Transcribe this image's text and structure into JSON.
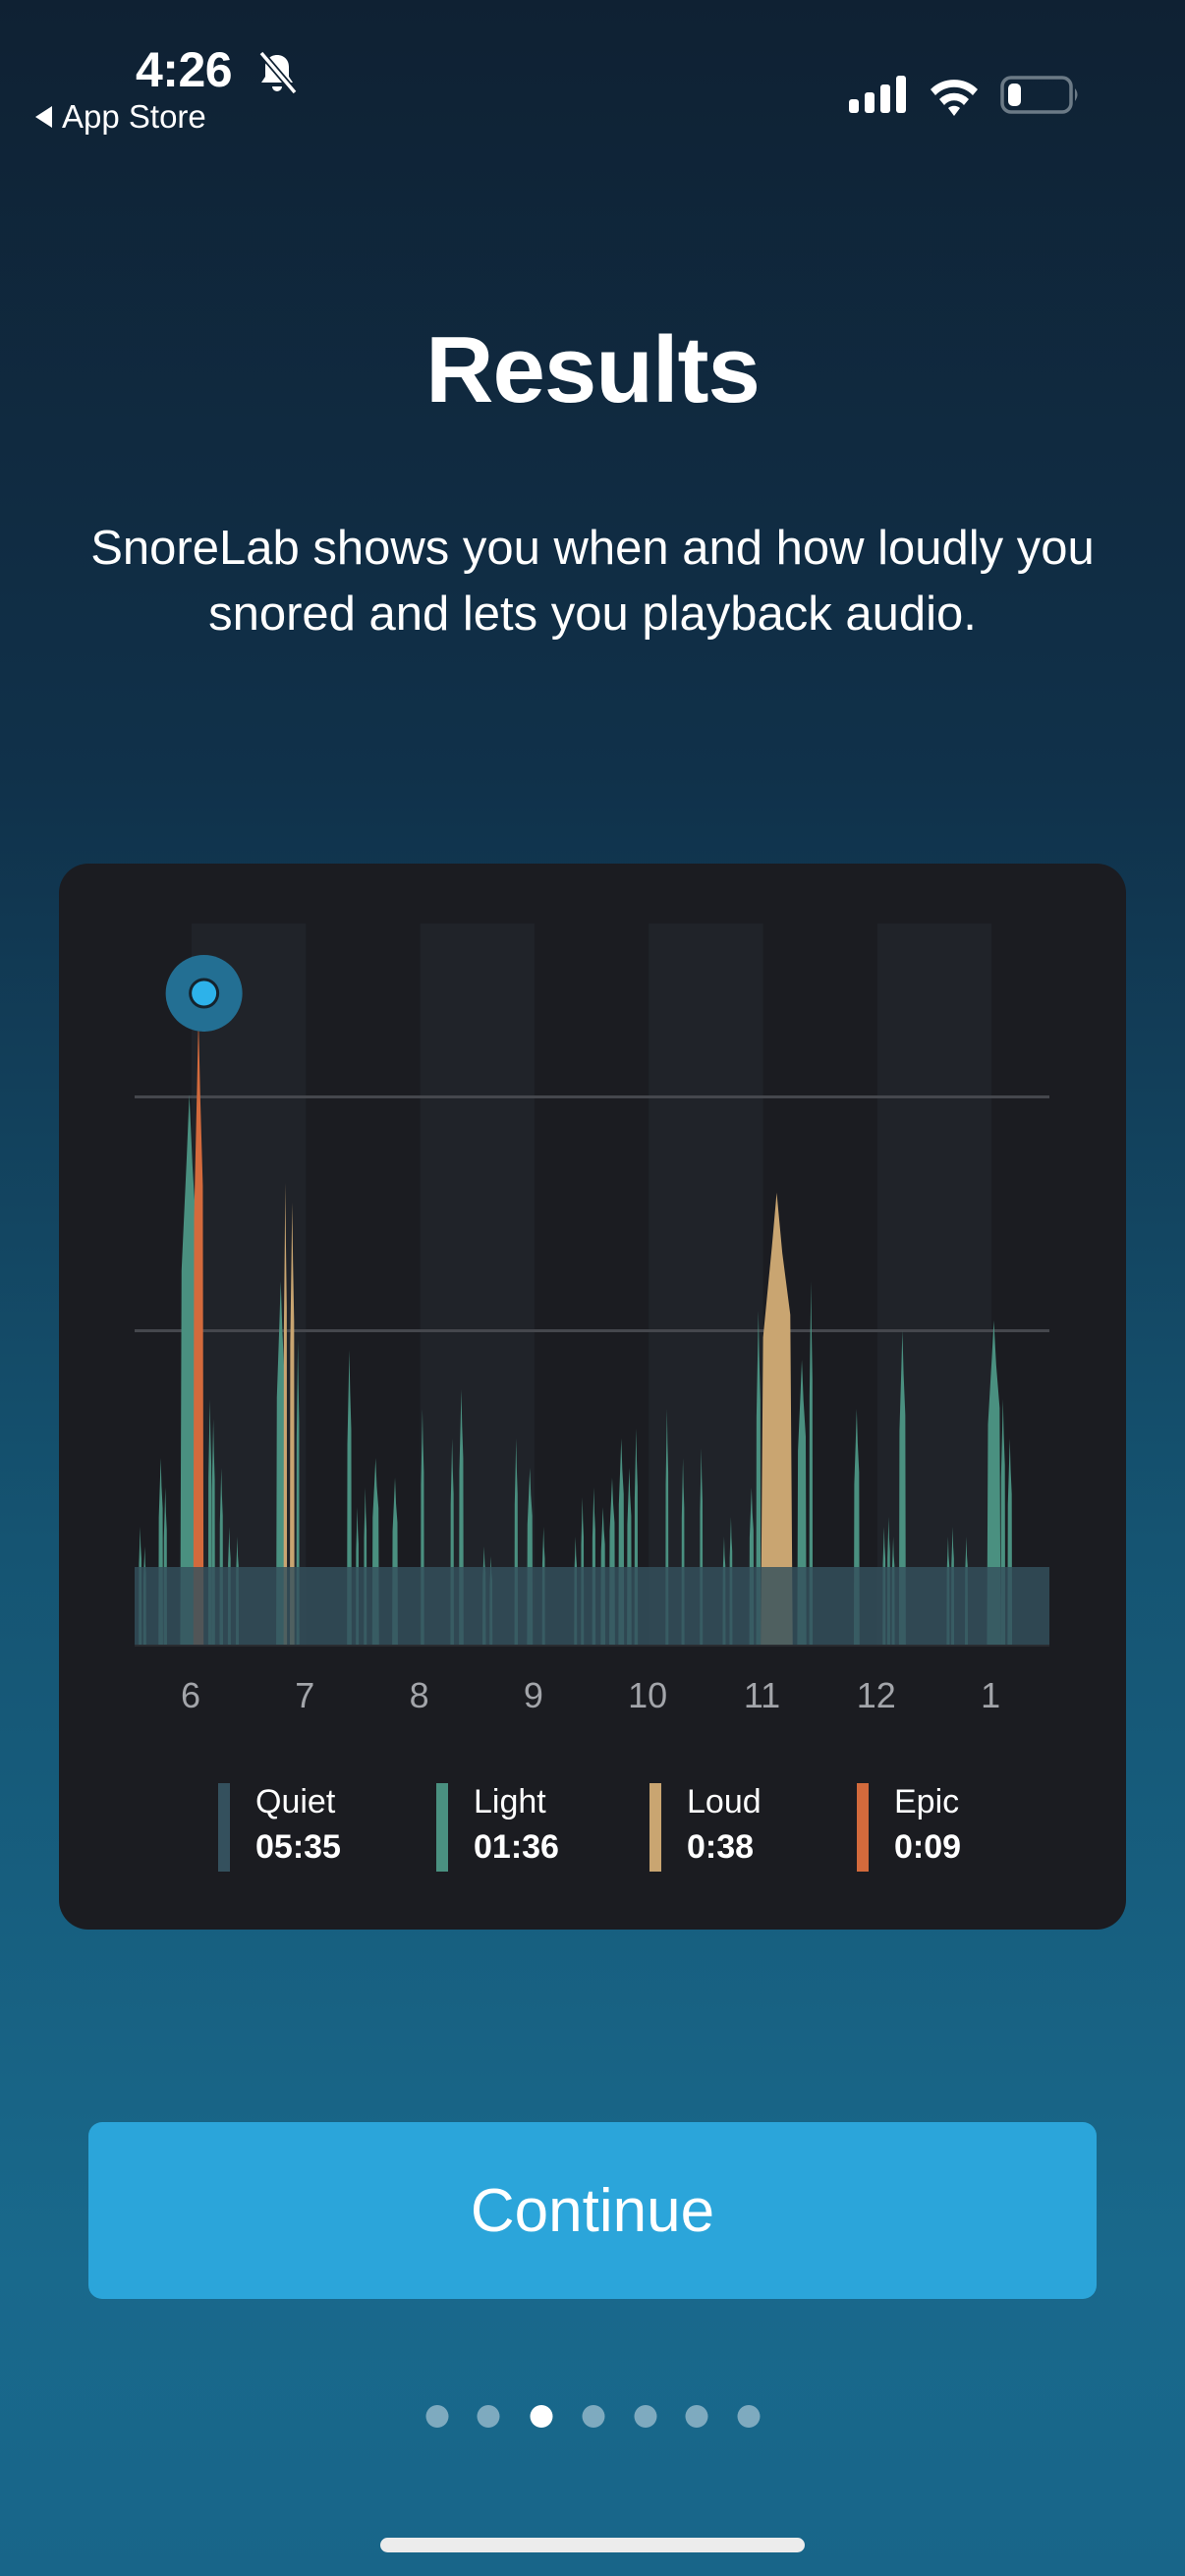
{
  "status_bar": {
    "time": "4:26",
    "silent_icon": "bell-slash-icon",
    "back_label": "App Store",
    "back_icon": "back-triangle-icon",
    "signal_icon": "cellular-signal-icon",
    "wifi_icon": "wifi-icon",
    "battery_icon": "battery-low-icon"
  },
  "page": {
    "title": "Results",
    "subtitle": "SnoreLab shows you when and how loudly you snored and lets you playback audio."
  },
  "colors": {
    "quiet": "#34505d",
    "light": "#4a9080",
    "loud": "#c9a571",
    "epic": "#d36a3c",
    "marker_outer": "#236f93",
    "marker_inner": "#2db2ea",
    "button": "#2ba5da",
    "card_bg": "#1b1c21"
  },
  "chart_data": {
    "type": "area",
    "title": "",
    "xlabel": "",
    "ylabel": "",
    "x_tick_labels": [
      "6",
      "7",
      "8",
      "9",
      "10",
      "11",
      "12",
      "1"
    ],
    "gridlines": 2,
    "legend_position": "bottom",
    "legend": [
      {
        "name": "Quiet",
        "duration": "05:35"
      },
      {
        "name": "Light",
        "duration": "01:36"
      },
      {
        "name": "Loud",
        "duration": "0:38"
      },
      {
        "name": "Epic",
        "duration": "0:09"
      }
    ],
    "selected_marker": {
      "x_hour": 0.1,
      "label": "peak epic snore"
    },
    "quiet_level": 79,
    "grid_levels": [
      319,
      557
    ],
    "spikes": [
      {
        "h": -0.45,
        "w": 0.02,
        "v": 120,
        "c": "light"
      },
      {
        "h": -0.41,
        "w": 0.02,
        "v": 100,
        "c": "light"
      },
      {
        "h": -0.27,
        "w": 0.04,
        "v": 190,
        "c": "light"
      },
      {
        "h": -0.23,
        "w": 0.03,
        "v": 160,
        "c": "light"
      },
      {
        "h": -0.02,
        "w": 0.16,
        "v": 560,
        "c": "light"
      },
      {
        "h": 0.06,
        "w": 0.09,
        "v": 640,
        "c": "epic"
      },
      {
        "h": 0.16,
        "w": 0.03,
        "v": 250,
        "c": "light"
      },
      {
        "h": 0.19,
        "w": 0.03,
        "v": 230,
        "c": "light"
      },
      {
        "h": 0.26,
        "w": 0.03,
        "v": 180,
        "c": "light"
      },
      {
        "h": 0.33,
        "w": 0.02,
        "v": 120,
        "c": "light"
      },
      {
        "h": 0.4,
        "w": 0.02,
        "v": 110,
        "c": "light"
      },
      {
        "h": 0.78,
        "w": 0.08,
        "v": 370,
        "c": "light"
      },
      {
        "h": 0.82,
        "w": 0.03,
        "v": 470,
        "c": "loud"
      },
      {
        "h": 0.88,
        "w": 0.04,
        "v": 450,
        "c": "loud"
      },
      {
        "h": 0.93,
        "w": 0.02,
        "v": 310,
        "c": "light"
      },
      {
        "h": 1.38,
        "w": 0.04,
        "v": 300,
        "c": "light"
      },
      {
        "h": 1.45,
        "w": 0.02,
        "v": 140,
        "c": "light"
      },
      {
        "h": 1.52,
        "w": 0.02,
        "v": 160,
        "c": "light"
      },
      {
        "h": 1.61,
        "w": 0.06,
        "v": 190,
        "c": "light"
      },
      {
        "h": 1.78,
        "w": 0.05,
        "v": 170,
        "c": "light"
      },
      {
        "h": 2.02,
        "w": 0.03,
        "v": 240,
        "c": "light"
      },
      {
        "h": 2.28,
        "w": 0.03,
        "v": 210,
        "c": "light"
      },
      {
        "h": 2.36,
        "w": 0.04,
        "v": 260,
        "c": "light"
      },
      {
        "h": 2.56,
        "w": 0.03,
        "v": 100,
        "c": "light"
      },
      {
        "h": 2.62,
        "w": 0.02,
        "v": 90,
        "c": "light"
      },
      {
        "h": 2.84,
        "w": 0.03,
        "v": 210,
        "c": "light"
      },
      {
        "h": 2.96,
        "w": 0.05,
        "v": 180,
        "c": "light"
      },
      {
        "h": 3.08,
        "w": 0.02,
        "v": 120,
        "c": "light"
      },
      {
        "h": 3.36,
        "w": 0.02,
        "v": 110,
        "c": "light"
      },
      {
        "h": 3.42,
        "w": 0.02,
        "v": 150,
        "c": "light"
      },
      {
        "h": 3.52,
        "w": 0.03,
        "v": 160,
        "c": "light"
      },
      {
        "h": 3.6,
        "w": 0.04,
        "v": 140,
        "c": "light"
      },
      {
        "h": 3.68,
        "w": 0.05,
        "v": 170,
        "c": "light"
      },
      {
        "h": 3.76,
        "w": 0.05,
        "v": 210,
        "c": "light"
      },
      {
        "h": 3.83,
        "w": 0.04,
        "v": 180,
        "c": "light"
      },
      {
        "h": 3.89,
        "w": 0.03,
        "v": 220,
        "c": "light"
      },
      {
        "h": 4.16,
        "w": 0.02,
        "v": 240,
        "c": "light"
      },
      {
        "h": 4.3,
        "w": 0.02,
        "v": 190,
        "c": "light"
      },
      {
        "h": 4.46,
        "w": 0.02,
        "v": 200,
        "c": "light"
      },
      {
        "h": 4.66,
        "w": 0.02,
        "v": 110,
        "c": "light"
      },
      {
        "h": 4.72,
        "w": 0.02,
        "v": 130,
        "c": "light"
      },
      {
        "h": 4.9,
        "w": 0.04,
        "v": 160,
        "c": "light"
      },
      {
        "h": 4.96,
        "w": 0.04,
        "v": 340,
        "c": "light"
      },
      {
        "h": 5.12,
        "w": 0.28,
        "v": 460,
        "c": "loud"
      },
      {
        "h": 5.34,
        "w": 0.08,
        "v": 290,
        "c": "light"
      },
      {
        "h": 5.42,
        "w": 0.03,
        "v": 370,
        "c": "light"
      },
      {
        "h": 5.82,
        "w": 0.05,
        "v": 240,
        "c": "light"
      },
      {
        "h": 6.06,
        "w": 0.02,
        "v": 120,
        "c": "light"
      },
      {
        "h": 6.1,
        "w": 0.02,
        "v": 130,
        "c": "light"
      },
      {
        "h": 6.14,
        "w": 0.02,
        "v": 110,
        "c": "light"
      },
      {
        "h": 6.22,
        "w": 0.06,
        "v": 320,
        "c": "light"
      },
      {
        "h": 6.62,
        "w": 0.02,
        "v": 110,
        "c": "light"
      },
      {
        "h": 6.66,
        "w": 0.02,
        "v": 120,
        "c": "light"
      },
      {
        "h": 6.78,
        "w": 0.02,
        "v": 110,
        "c": "light"
      },
      {
        "h": 7.02,
        "w": 0.12,
        "v": 330,
        "c": "light"
      },
      {
        "h": 7.1,
        "w": 0.04,
        "v": 250,
        "c": "light"
      },
      {
        "h": 7.16,
        "w": 0.04,
        "v": 210,
        "c": "light"
      }
    ]
  },
  "footer": {
    "continue_label": "Continue",
    "page_dots": 7,
    "active_dot": 2
  }
}
